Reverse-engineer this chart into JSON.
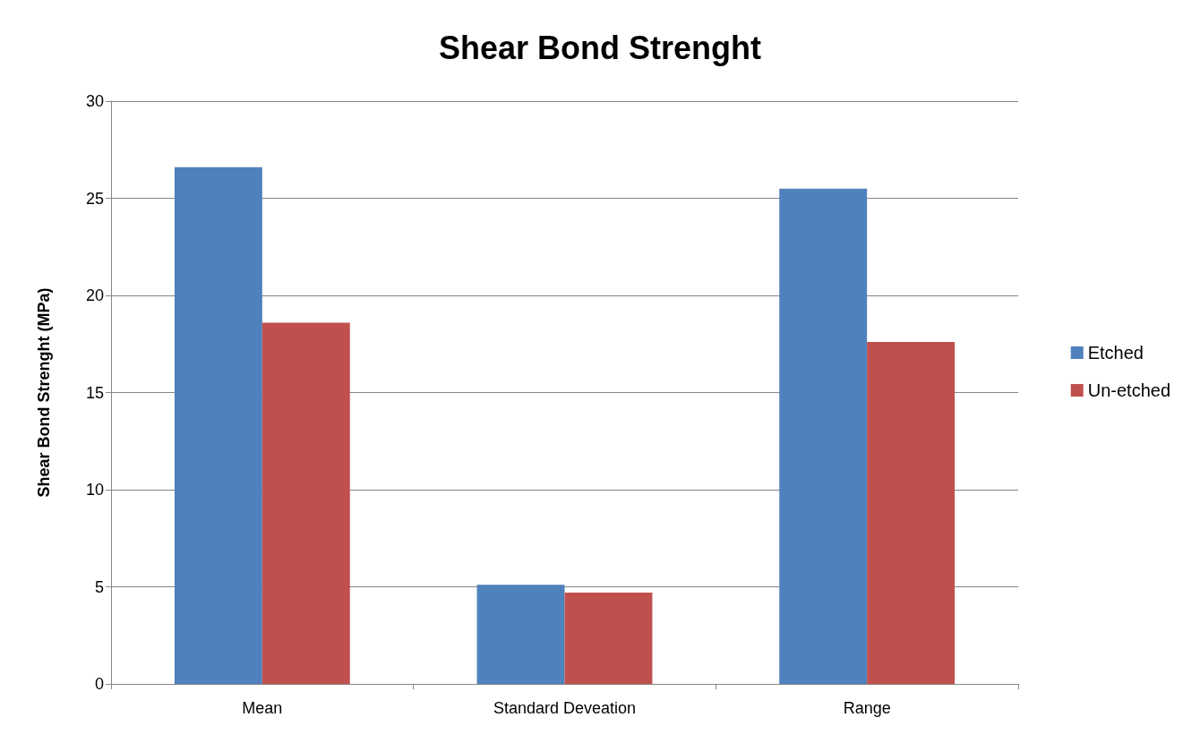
{
  "chart_data": {
    "type": "bar",
    "title": "Shear Bond Strenght",
    "ylabel": "Shear Bond Strenght (MPa)",
    "categories": [
      "Mean",
      "Standard Deveation",
      "Range"
    ],
    "series": [
      {
        "name": "Etched",
        "color": "#4f81bd",
        "values": [
          26.6,
          5.1,
          25.5
        ]
      },
      {
        "name": "Un-etched",
        "color": "#c0504d",
        "values": [
          18.6,
          4.7,
          17.6
        ]
      }
    ],
    "ylim": [
      0,
      30
    ],
    "yticks": [
      0,
      5,
      10,
      15,
      20,
      25,
      30
    ],
    "grid": "y",
    "legend": "right"
  }
}
